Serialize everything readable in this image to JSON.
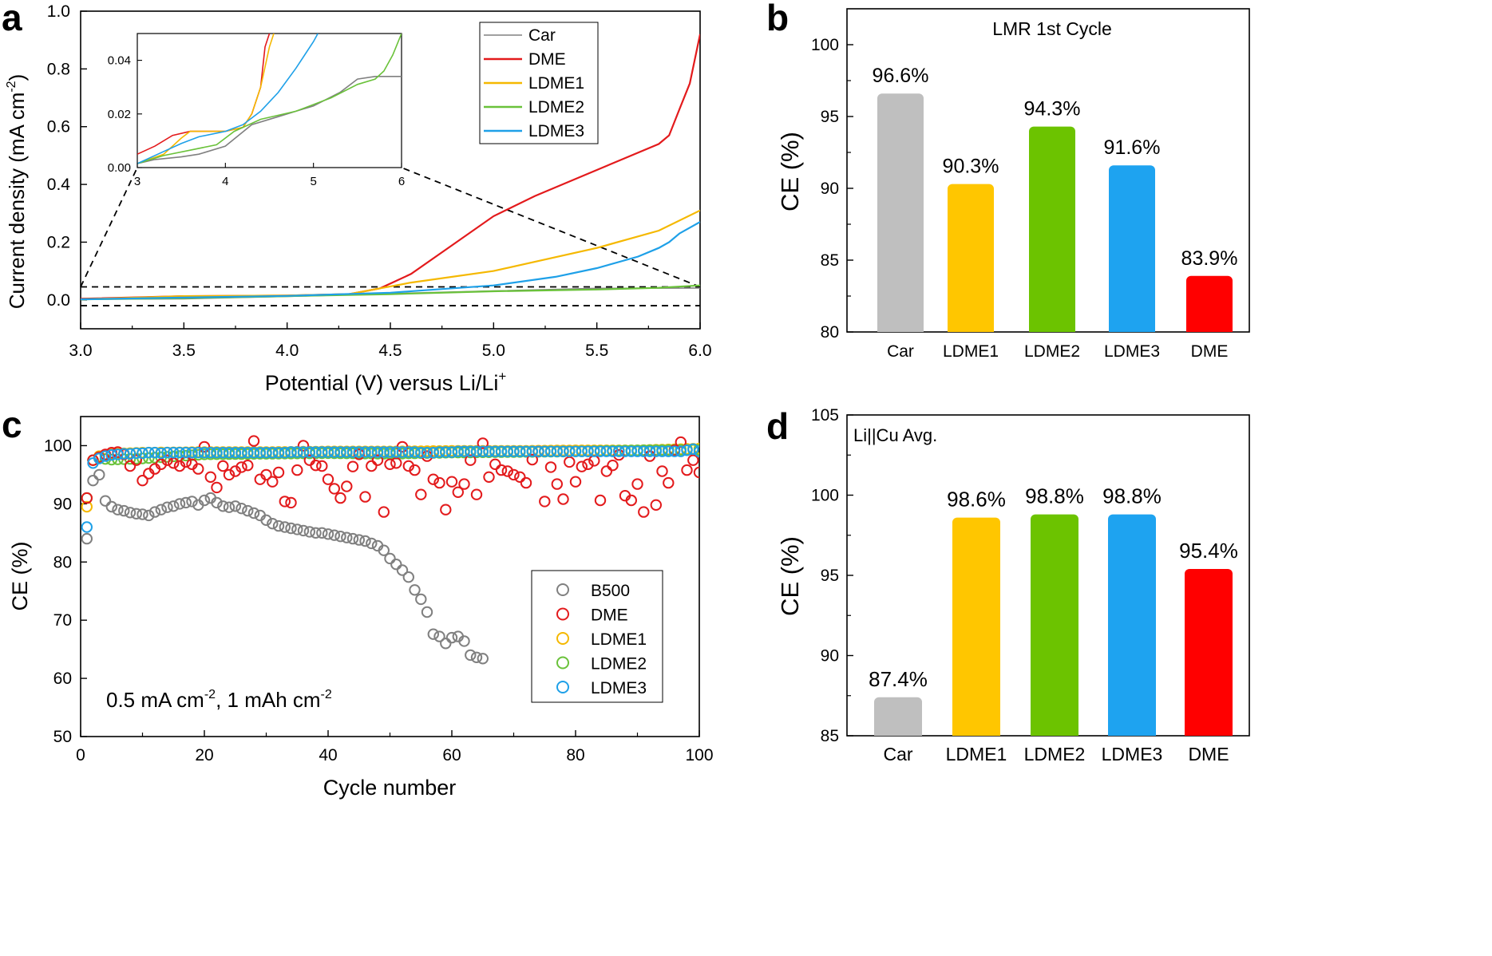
{
  "panels": {
    "a": {
      "letter": "a"
    },
    "b": {
      "letter": "b"
    },
    "c": {
      "letter": "c"
    },
    "d": {
      "letter": "d"
    }
  },
  "colors": {
    "Car": "#808080",
    "DME": "#e31a1c",
    "LDME1": "#f5b800",
    "LDME2": "#6ac23a",
    "LDME3": "#1ea0e8",
    "B500": "#808080",
    "bar_car": "#bfbfbf",
    "bar_ldme1": "#ffc600",
    "bar_ldme2": "#6cc300",
    "bar_ldme3": "#1ea3f0",
    "bar_dme": "#ff0000"
  },
  "chart_data": [
    {
      "id": "a",
      "type": "line",
      "xlabel": "Potential (V) versus Li/Li",
      "xlabel_sup": "+",
      "ylabel": "Current density (mA cm",
      "ylabel_sup": "-2",
      "ylabel_end": ")",
      "xlim": [
        3.0,
        6.0
      ],
      "ylim": [
        -0.1,
        1.0
      ],
      "xticks": [
        "3.0",
        "3.5",
        "4.0",
        "4.5",
        "5.0",
        "5.5",
        "6.0"
      ],
      "yticks": [
        "0.0",
        "0.2",
        "0.4",
        "0.6",
        "0.8",
        "1.0"
      ],
      "series": [
        {
          "name": "Car",
          "x": [
            3.0,
            3.5,
            4.0,
            4.5,
            5.0,
            5.5,
            6.0
          ],
          "values": [
            0.002,
            0.004,
            0.012,
            0.022,
            0.031,
            0.04,
            0.041
          ]
        },
        {
          "name": "DME",
          "x": [
            3.0,
            3.5,
            4.0,
            4.3,
            4.45,
            4.6,
            4.8,
            5.0,
            5.2,
            5.4,
            5.6,
            5.8,
            5.85,
            5.9,
            5.95,
            6.0
          ],
          "values": [
            0.004,
            0.013,
            0.015,
            0.02,
            0.04,
            0.09,
            0.19,
            0.29,
            0.36,
            0.42,
            0.48,
            0.54,
            0.57,
            0.66,
            0.75,
            0.92
          ]
        },
        {
          "name": "LDME1",
          "x": [
            3.0,
            3.5,
            4.0,
            4.3,
            4.45,
            4.6,
            5.0,
            5.5,
            5.8,
            6.0
          ],
          "values": [
            0.002,
            0.013,
            0.015,
            0.02,
            0.04,
            0.06,
            0.1,
            0.18,
            0.24,
            0.31
          ]
        },
        {
          "name": "LDME2",
          "x": [
            3.0,
            3.5,
            4.0,
            4.5,
            5.0,
            5.5,
            5.8,
            6.0
          ],
          "values": [
            0.002,
            0.006,
            0.013,
            0.02,
            0.03,
            0.036,
            0.042,
            0.05
          ]
        },
        {
          "name": "LDME3",
          "x": [
            3.0,
            3.5,
            4.0,
            4.5,
            4.8,
            5.0,
            5.3,
            5.5,
            5.7,
            5.8,
            5.85,
            5.9,
            6.0
          ],
          "values": [
            0.002,
            0.008,
            0.014,
            0.025,
            0.04,
            0.05,
            0.08,
            0.11,
            0.15,
            0.18,
            0.2,
            0.23,
            0.27
          ]
        }
      ],
      "zoom_box": {
        "xlim": [
          3.0,
          6.0
        ],
        "ylim": [
          -0.02,
          0.045
        ]
      },
      "inset": {
        "xlim": [
          3,
          6
        ],
        "ylim": [
          0.0,
          0.05
        ],
        "xticks": [
          "3",
          "4",
          "5",
          "6"
        ],
        "yticks": [
          "0.00",
          "0.02",
          "0.04"
        ],
        "series": [
          {
            "name": "Car",
            "x": [
              3.0,
              3.2,
              3.5,
              3.7,
              4.0,
              4.3,
              4.6,
              5.0,
              5.3,
              5.5,
              5.7,
              6.0
            ],
            "values": [
              0.0015,
              0.003,
              0.004,
              0.005,
              0.008,
              0.016,
              0.019,
              0.023,
              0.028,
              0.033,
              0.034,
              0.034
            ]
          },
          {
            "name": "DME",
            "x": [
              3.0,
              3.2,
              3.4,
              3.6,
              4.0,
              4.2,
              4.3,
              4.4,
              4.45,
              4.5
            ],
            "values": [
              0.005,
              0.008,
              0.012,
              0.0135,
              0.0135,
              0.015,
              0.02,
              0.03,
              0.045,
              0.05
            ]
          },
          {
            "name": "LDME1",
            "x": [
              3.0,
              3.3,
              3.5,
              3.6,
              4.0,
              4.2,
              4.3,
              4.4,
              4.5,
              4.55
            ],
            "values": [
              0.0015,
              0.005,
              0.011,
              0.0135,
              0.0135,
              0.015,
              0.02,
              0.03,
              0.045,
              0.05
            ]
          },
          {
            "name": "LDME2",
            "x": [
              3.0,
              3.3,
              3.6,
              3.9,
              4.1,
              4.4,
              4.8,
              5.2,
              5.5,
              5.7,
              5.8,
              5.9,
              6.0
            ],
            "values": [
              0.0015,
              0.0045,
              0.0065,
              0.0085,
              0.0135,
              0.018,
              0.021,
              0.026,
              0.031,
              0.033,
              0.036,
              0.042,
              0.05
            ]
          },
          {
            "name": "LDME3",
            "x": [
              3.0,
              3.3,
              3.5,
              3.7,
              4.0,
              4.2,
              4.4,
              4.6,
              4.8,
              5.0,
              5.05
            ],
            "values": [
              0.0015,
              0.006,
              0.009,
              0.0115,
              0.0135,
              0.016,
              0.021,
              0.028,
              0.037,
              0.047,
              0.05
            ]
          }
        ]
      },
      "legend": "top-right"
    },
    {
      "id": "b",
      "type": "bar",
      "title": "LMR 1st Cycle",
      "ylabel": "CE (%)",
      "ylim": [
        80,
        102.5
      ],
      "yticks": [
        "80",
        "85",
        "90",
        "95",
        "100"
      ],
      "categories": [
        "Car",
        "LDME1",
        "LDME2",
        "LDME3",
        "DME"
      ],
      "values": [
        96.6,
        90.3,
        94.3,
        91.6,
        83.9
      ],
      "data_labels": [
        "96.6%",
        "90.3%",
        "94.3%",
        "91.6%",
        "83.9%"
      ]
    },
    {
      "id": "c",
      "type": "scatter",
      "xlabel": "Cycle number",
      "ylabel": "CE (%)",
      "xlim": [
        0,
        100
      ],
      "ylim": [
        50,
        105
      ],
      "xticks": [
        "0",
        "20",
        "40",
        "60",
        "80",
        "100"
      ],
      "yticks": [
        "50",
        "60",
        "70",
        "80",
        "90",
        "100"
      ],
      "annotation": "0.5 mA cm",
      "annotation_sup1": "-2",
      "annotation_mid": ", 1 mAh cm",
      "annotation_sup2": "-2",
      "legend": "bottom-right",
      "series": [
        {
          "name": "B500",
          "x": [
            1,
            2,
            3,
            4,
            5,
            6,
            7,
            8,
            9,
            10,
            11,
            12,
            13,
            14,
            15,
            16,
            17,
            18,
            19,
            20,
            21,
            22,
            23,
            24,
            25,
            26,
            27,
            28,
            29,
            30,
            31,
            32,
            33,
            34,
            35,
            36,
            37,
            38,
            39,
            40,
            41,
            42,
            43,
            44,
            45,
            46,
            47,
            48,
            49,
            50,
            51,
            52,
            53,
            54,
            55,
            56,
            57,
            58,
            59,
            60,
            61,
            62,
            63,
            64,
            65
          ],
          "values": [
            84.0,
            94.0,
            95.0,
            90.5,
            89.5,
            89.0,
            88.8,
            88.5,
            88.3,
            88.2,
            88.0,
            88.6,
            89.0,
            89.4,
            89.6,
            90.0,
            90.2,
            90.4,
            89.8,
            90.6,
            91.0,
            90.2,
            89.6,
            89.4,
            89.6,
            89.2,
            88.8,
            88.4,
            88.0,
            87.2,
            86.6,
            86.2,
            86.0,
            85.8,
            85.6,
            85.4,
            85.2,
            85.0,
            85.0,
            84.8,
            84.6,
            84.4,
            84.2,
            84.0,
            83.8,
            83.6,
            83.2,
            82.8,
            82.0,
            80.6,
            79.6,
            78.6,
            77.4,
            75.2,
            73.6,
            71.4,
            67.6,
            67.2,
            66.0,
            67.0,
            67.2,
            66.4,
            64.0,
            63.6,
            63.4
          ]
        },
        {
          "name": "DME",
          "x": [
            1,
            2,
            3,
            4,
            5,
            6,
            7,
            8,
            9,
            10,
            11,
            12,
            13,
            14,
            15,
            16,
            17,
            18,
            19,
            20,
            21,
            22,
            23,
            24,
            25,
            26,
            27,
            28,
            29,
            30,
            31,
            32,
            33,
            34,
            35,
            36,
            37,
            38,
            39,
            40,
            41,
            42,
            43,
            44,
            45,
            46,
            47,
            48,
            49,
            50,
            51,
            52,
            53,
            54,
            55,
            56,
            57,
            58,
            59,
            60,
            61,
            62,
            63,
            64,
            65,
            66,
            67,
            68,
            69,
            70,
            71,
            72,
            73,
            74,
            75,
            76,
            77,
            78,
            79,
            80,
            81,
            82,
            83,
            84,
            85,
            86,
            87,
            88,
            89,
            90,
            91,
            92,
            93,
            94,
            95,
            96,
            97,
            98,
            99,
            100
          ],
          "values": [
            91.0,
            97.5,
            98.0,
            98.5,
            98.8,
            98.9,
            98.5,
            96.5,
            97.5,
            94.0,
            95.2,
            96.0,
            96.8,
            97.5,
            97.0,
            96.5,
            97.2,
            96.8,
            96.0,
            99.8,
            94.6,
            92.8,
            96.5,
            95.0,
            95.6,
            96.3,
            96.6,
            100.8,
            94.2,
            95.0,
            93.8,
            95.4,
            90.4,
            90.2,
            95.8,
            100.0,
            97.5,
            96.6,
            96.5,
            94.2,
            92.6,
            91.0,
            93.0,
            96.4,
            98.5,
            91.2,
            96.5,
            97.5,
            88.6,
            96.8,
            97.0,
            99.8,
            96.5,
            95.8,
            91.6,
            98.2,
            94.2,
            93.6,
            89.0,
            93.8,
            92.0,
            93.4,
            97.5,
            91.6,
            100.4,
            94.6,
            96.8,
            95.8,
            95.6,
            95.0,
            94.6,
            93.6,
            97.6,
            99.0,
            90.4,
            96.3,
            93.4,
            90.8,
            97.2,
            93.8,
            96.4,
            96.8,
            97.4,
            90.6,
            95.6,
            96.6,
            98.4,
            91.4,
            90.6,
            93.4,
            88.6,
            98.2,
            89.8,
            95.6,
            93.6,
            99.2,
            100.6,
            95.8,
            97.5,
            95.4
          ]
        },
        {
          "name": "LDME1",
          "x": [
            1,
            2,
            3,
            5,
            10,
            20,
            30,
            40,
            50,
            60,
            70,
            80,
            90,
            100
          ],
          "values": [
            89.5,
            97.5,
            98.2,
            98.6,
            98.8,
            98.9,
            98.9,
            99.0,
            99.0,
            99.1,
            99.1,
            99.2,
            99.2,
            99.5
          ]
        },
        {
          "name": "LDME2",
          "x": [
            1,
            2,
            3,
            5,
            10,
            20,
            30,
            40,
            50,
            60,
            70,
            80,
            90,
            100
          ],
          "values": [
            91.0,
            97.5,
            97.8,
            97.6,
            97.8,
            98.5,
            98.6,
            98.7,
            98.6,
            98.8,
            98.9,
            99.0,
            99.2,
            99.3
          ]
        },
        {
          "name": "LDME3",
          "x": [
            1,
            2,
            3,
            4,
            5,
            6,
            7,
            8,
            9,
            10,
            11,
            12,
            13,
            14,
            15,
            16,
            17,
            18,
            19,
            20,
            21,
            22,
            23,
            24,
            25,
            26,
            27,
            28,
            29,
            30,
            31,
            32,
            33,
            34,
            35,
            36,
            37,
            38,
            39,
            40,
            41,
            42,
            43,
            44,
            45,
            46,
            47,
            48,
            49,
            50,
            51,
            52,
            53,
            54,
            55,
            56,
            57,
            58,
            59,
            60,
            61,
            62,
            63,
            64,
            65,
            66,
            67,
            68,
            69,
            70,
            71,
            72,
            73,
            74,
            75,
            76,
            77,
            78,
            79,
            80,
            81,
            82,
            83,
            84,
            85,
            86,
            87,
            88,
            89,
            90,
            91,
            92,
            93,
            94,
            95,
            96,
            97,
            98,
            99,
            100
          ],
          "values": [
            86.0,
            97.0,
            97.8,
            98.2,
            98.4,
            98.5,
            98.6,
            98.6,
            98.7,
            98.7,
            98.8,
            98.8,
            98.7,
            98.8,
            98.8,
            98.8,
            98.8,
            98.8,
            98.8,
            98.8,
            98.8,
            98.8,
            98.8,
            98.8,
            98.8,
            98.8,
            98.8,
            98.8,
            98.8,
            98.8,
            98.8,
            98.8,
            98.8,
            98.9,
            98.9,
            98.9,
            98.9,
            98.9,
            98.9,
            98.9,
            98.9,
            98.9,
            98.9,
            98.9,
            98.9,
            98.9,
            98.9,
            98.9,
            98.9,
            98.9,
            98.9,
            98.9,
            98.9,
            98.9,
            98.8,
            98.8,
            98.8,
            98.9,
            98.9,
            98.9,
            99.0,
            99.0,
            99.0,
            99.0,
            99.0,
            99.0,
            99.0,
            99.0,
            99.0,
            99.0,
            99.0,
            99.0,
            99.0,
            99.0,
            99.0,
            99.0,
            99.0,
            99.0,
            99.0,
            99.0,
            99.0,
            99.0,
            99.0,
            99.0,
            99.0,
            99.0,
            99.0,
            99.0,
            99.0,
            99.0,
            99.0,
            99.0,
            99.0,
            99.0,
            99.0,
            99.0,
            99.0,
            99.2,
            99.4,
            99.0
          ]
        }
      ]
    },
    {
      "id": "d",
      "type": "bar",
      "title": "Li||Cu Avg.",
      "ylabel": "CE (%)",
      "ylim": [
        85,
        105
      ],
      "yticks": [
        "85",
        "90",
        "95",
        "100",
        "105"
      ],
      "categories": [
        "Car",
        "LDME1",
        "LDME2",
        "LDME3",
        "DME"
      ],
      "values": [
        87.4,
        98.6,
        98.8,
        98.8,
        95.4
      ],
      "data_labels": [
        "87.4%",
        "98.6%",
        "98.8%",
        "98.8%",
        "95.4%"
      ]
    }
  ]
}
